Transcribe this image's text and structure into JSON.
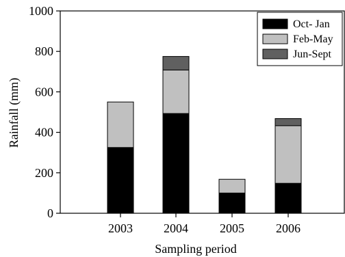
{
  "chart_data": {
    "type": "bar",
    "stacked": true,
    "categories": [
      "2003",
      "2004",
      "2005",
      "2006"
    ],
    "series": [
      {
        "name": "Oct- Jan",
        "color": "#000000",
        "values": [
          325,
          493,
          100,
          148
        ]
      },
      {
        "name": "Feb-May",
        "color": "#c0c0c0",
        "values": [
          225,
          215,
          68,
          285
        ]
      },
      {
        "name": "Jun-Sept",
        "color": "#606060",
        "values": [
          0,
          67,
          0,
          35
        ]
      }
    ],
    "xlabel": "Sampling period",
    "ylabel": "Rainfall (mm)",
    "ylim": [
      0,
      1000
    ],
    "yticks": [
      "0",
      "200",
      "400",
      "600",
      "800",
      "1000"
    ],
    "grid": false,
    "legend_position": "top-right"
  }
}
